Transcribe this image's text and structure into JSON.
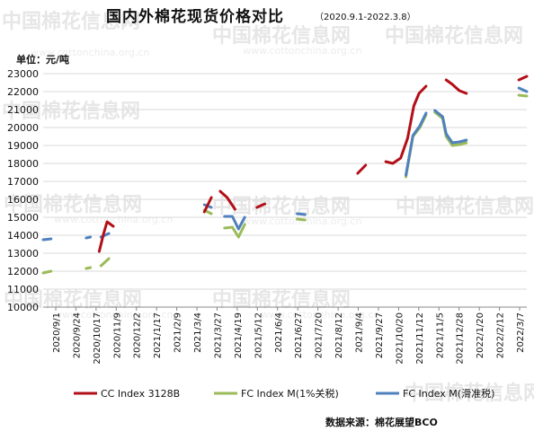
{
  "watermark": {
    "brand": "中国棉花信息网",
    "url": "www.cottonchina.org.cn"
  },
  "chart_data": {
    "type": "line",
    "title": "国内外棉花现货价格对比",
    "subtitle": "（2020.9.1-2022.3.8）",
    "ylabel": "单位：元/吨",
    "ylim": [
      10000,
      23000
    ],
    "yticks": [
      10000,
      11000,
      12000,
      13000,
      14000,
      15000,
      16000,
      17000,
      18000,
      19000,
      20000,
      21000,
      22000,
      23000
    ],
    "xlim": [
      "2020-09-01",
      "2022-03-07"
    ],
    "xticks": [
      "2020/9/1",
      "2020/9/24",
      "2020/10/17",
      "2020/11/9",
      "2020/12/2",
      "2021/1/17",
      "2021/2/9",
      "2021/3/4",
      "2021/3/27",
      "2021/4/19",
      "2021/5/12",
      "2021/6/4",
      "2021/6/27",
      "2021/7/20",
      "2021/8/12",
      "2021/9/4",
      "2021/9/27",
      "2021/10/20",
      "2021/11/12",
      "2021/11/5",
      "2021/12/28",
      "2022/1/20",
      "2022/2/12",
      "2022/3/7"
    ],
    "source": "数据来源：棉花展望BCO",
    "legend_position": "bottom",
    "grid": "horizontal",
    "series": [
      {
        "name": "CC Index 3128B",
        "color": "#b30f18",
        "points": [
          [
            "2020-09-01",
            12350
          ],
          [
            "2020-09-14",
            12450
          ],
          [
            "2020-09-28",
            12650
          ],
          [
            "2020-10-12",
            12800
          ],
          [
            "2020-10-25",
            12850
          ],
          [
            "2020-11-04",
            13100
          ],
          [
            "2020-11-09",
            14100
          ],
          [
            "2020-11-13",
            14750
          ],
          [
            "2020-11-20",
            14500
          ],
          [
            "2020-12-01",
            14450
          ],
          [
            "2020-12-15",
            14600
          ],
          [
            "2020-12-31",
            14800
          ],
          [
            "2021-01-14",
            15000
          ],
          [
            "2021-01-28",
            15050
          ],
          [
            "2021-02-09",
            15200
          ],
          [
            "2021-02-20",
            15250
          ],
          [
            "2021-03-04",
            15300
          ],
          [
            "2021-03-12",
            16100
          ],
          [
            "2021-03-22",
            16450
          ],
          [
            "2021-03-30",
            16100
          ],
          [
            "2021-04-08",
            15450
          ],
          [
            "2021-04-20",
            15300
          ],
          [
            "2021-05-03",
            15550
          ],
          [
            "2021-05-12",
            15750
          ],
          [
            "2021-05-26",
            15950
          ],
          [
            "2021-06-10",
            15750
          ],
          [
            "2021-06-27",
            16000
          ],
          [
            "2021-07-14",
            16150
          ],
          [
            "2021-07-28",
            16700
          ],
          [
            "2021-08-12",
            17000
          ],
          [
            "2021-08-26",
            17450
          ],
          [
            "2021-09-04",
            17900
          ],
          [
            "2021-09-14",
            18450
          ],
          [
            "2021-09-27",
            18100
          ],
          [
            "2021-10-05",
            18000
          ],
          [
            "2021-10-14",
            18300
          ],
          [
            "2021-10-22",
            19400
          ],
          [
            "2021-10-29",
            21200
          ],
          [
            "2021-11-04",
            21900
          ],
          [
            "2021-11-12",
            22300
          ],
          [
            "2021-11-22",
            22500
          ],
          [
            "2021-12-05",
            22650
          ],
          [
            "2021-12-12",
            22400
          ],
          [
            "2021-12-20",
            22050
          ],
          [
            "2021-12-28",
            21900
          ],
          [
            "2022-01-12",
            21950
          ],
          [
            "2022-01-28",
            22200
          ],
          [
            "2022-02-12",
            22400
          ],
          [
            "2022-02-26",
            22650
          ],
          [
            "2022-03-07",
            22850
          ]
        ]
      },
      {
        "name": "FC Index M(1%关税)",
        "color": "#9bbb59",
        "points": [
          [
            "2020-09-01",
            11900
          ],
          [
            "2020-09-10",
            12000
          ],
          [
            "2020-09-20",
            12200
          ],
          [
            "2020-09-30",
            12100
          ],
          [
            "2020-10-10",
            12300
          ],
          [
            "2020-10-20",
            12150
          ],
          [
            "2020-10-25",
            12200
          ],
          [
            "2020-11-06",
            12300
          ],
          [
            "2020-11-15",
            12700
          ],
          [
            "2020-11-30",
            12950
          ],
          [
            "2020-12-15",
            13300
          ],
          [
            "2020-12-28",
            13700
          ],
          [
            "2021-01-14",
            13700
          ],
          [
            "2021-01-28",
            13900
          ],
          [
            "2021-02-09",
            14200
          ],
          [
            "2021-02-20",
            14400
          ],
          [
            "2021-03-04",
            15400
          ],
          [
            "2021-03-12",
            15200
          ],
          [
            "2021-03-27",
            14400
          ],
          [
            "2021-04-05",
            14450
          ],
          [
            "2021-04-12",
            13900
          ],
          [
            "2021-04-19",
            14600
          ],
          [
            "2021-05-01",
            15150
          ],
          [
            "2021-05-12",
            15350
          ],
          [
            "2021-05-22",
            15050
          ],
          [
            "2021-06-04",
            14700
          ],
          [
            "2021-06-18",
            14900
          ],
          [
            "2021-06-27",
            14850
          ],
          [
            "2021-07-10",
            15200
          ],
          [
            "2021-07-20",
            15300
          ],
          [
            "2021-08-05",
            15650
          ],
          [
            "2021-08-20",
            16050
          ],
          [
            "2021-09-04",
            16450
          ],
          [
            "2021-09-14",
            16900
          ],
          [
            "2021-09-27",
            16750
          ],
          [
            "2021-10-10",
            16850
          ],
          [
            "2021-10-20",
            17250
          ],
          [
            "2021-10-28",
            19500
          ],
          [
            "2021-11-05",
            20000
          ],
          [
            "2021-11-12",
            20700
          ],
          [
            "2021-11-22",
            20850
          ],
          [
            "2021-12-01",
            20500
          ],
          [
            "2021-12-05",
            19500
          ],
          [
            "2021-12-12",
            19000
          ],
          [
            "2021-12-20",
            19050
          ],
          [
            "2021-12-28",
            19150
          ],
          [
            "2022-01-12",
            19650
          ],
          [
            "2022-01-28",
            20200
          ],
          [
            "2022-02-12",
            21000
          ],
          [
            "2022-02-26",
            21800
          ],
          [
            "2022-03-07",
            21750
          ]
        ]
      },
      {
        "name": "FC Index M(滑准税)",
        "color": "#4f81bd",
        "points": [
          [
            "2020-09-01",
            13750
          ],
          [
            "2020-09-10",
            13800
          ],
          [
            "2020-09-20",
            13950
          ],
          [
            "2020-09-30",
            13900
          ],
          [
            "2020-10-10",
            13950
          ],
          [
            "2020-10-20",
            13850
          ],
          [
            "2020-10-25",
            13900
          ],
          [
            "2020-11-06",
            13900
          ],
          [
            "2020-11-15",
            14100
          ],
          [
            "2020-11-30",
            14300
          ],
          [
            "2020-12-15",
            14500
          ],
          [
            "2020-12-28",
            14700
          ],
          [
            "2021-01-14",
            14700
          ],
          [
            "2021-01-28",
            14800
          ],
          [
            "2021-02-09",
            14950
          ],
          [
            "2021-02-20",
            15050
          ],
          [
            "2021-03-04",
            15700
          ],
          [
            "2021-03-12",
            15550
          ],
          [
            "2021-03-27",
            15050
          ],
          [
            "2021-04-05",
            15050
          ],
          [
            "2021-04-12",
            14350
          ],
          [
            "2021-04-19",
            15000
          ],
          [
            "2021-05-01",
            15450
          ],
          [
            "2021-05-12",
            15600
          ],
          [
            "2021-05-22",
            15350
          ],
          [
            "2021-06-04",
            15050
          ],
          [
            "2021-06-18",
            15200
          ],
          [
            "2021-06-27",
            15150
          ],
          [
            "2021-07-10",
            15450
          ],
          [
            "2021-07-20",
            15500
          ],
          [
            "2021-08-05",
            15850
          ],
          [
            "2021-08-20",
            16200
          ],
          [
            "2021-09-04",
            16600
          ],
          [
            "2021-09-14",
            17050
          ],
          [
            "2021-09-27",
            16900
          ],
          [
            "2021-10-10",
            16950
          ],
          [
            "2021-10-20",
            17350
          ],
          [
            "2021-10-28",
            19550
          ],
          [
            "2021-11-05",
            20100
          ],
          [
            "2021-11-12",
            20800
          ],
          [
            "2021-11-22",
            20950
          ],
          [
            "2021-12-01",
            20600
          ],
          [
            "2021-12-05",
            19650
          ],
          [
            "2021-12-12",
            19150
          ],
          [
            "2021-12-20",
            19200
          ],
          [
            "2021-12-28",
            19300
          ],
          [
            "2022-01-12",
            19800
          ],
          [
            "2022-01-28",
            20350
          ],
          [
            "2022-02-12",
            21100
          ],
          [
            "2022-02-26",
            22200
          ],
          [
            "2022-03-07",
            22000
          ]
        ]
      }
    ]
  }
}
